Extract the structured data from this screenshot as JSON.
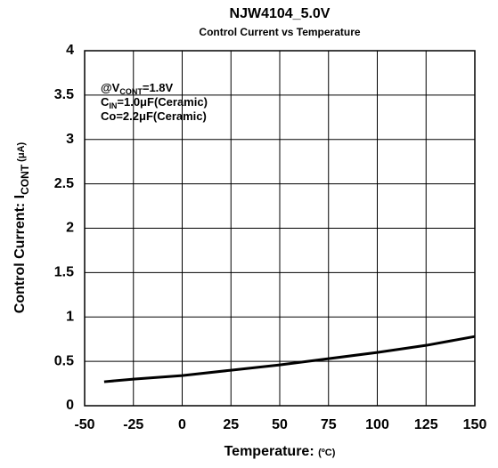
{
  "chart_data": {
    "type": "line",
    "title": "NJW4104_5.0V",
    "subtitle": "Control Current vs Temperature",
    "x_label": {
      "main": "Temperature:",
      "unit": "(ºC)"
    },
    "y_label": {
      "main": "Control Current: I",
      "sub": "CONT",
      "unit": " (μA)"
    },
    "annotations": [
      {
        "main": "@V",
        "sub": "CONT",
        "rest": "=1.8V"
      },
      {
        "main": "C",
        "sub": "IN",
        "rest": "=1.0μF(Ceramic)"
      },
      {
        "main": "Co=2.2μF(Ceramic)"
      }
    ],
    "x": [
      -40,
      -25,
      0,
      25,
      50,
      75,
      100,
      125,
      150
    ],
    "series": [
      {
        "color": "#000000",
        "values": [
          0.27,
          0.3,
          0.34,
          0.4,
          0.46,
          0.53,
          0.6,
          0.68,
          0.78
        ]
      }
    ],
    "xlim": [
      -50,
      150
    ],
    "xticks": [
      -50,
      -25,
      0,
      25,
      50,
      75,
      100,
      125,
      150
    ],
    "ylim": [
      0,
      4
    ],
    "yticks": [
      0,
      0.5,
      1,
      1.5,
      2,
      2.5,
      3,
      3.5,
      4
    ],
    "grid": true
  }
}
